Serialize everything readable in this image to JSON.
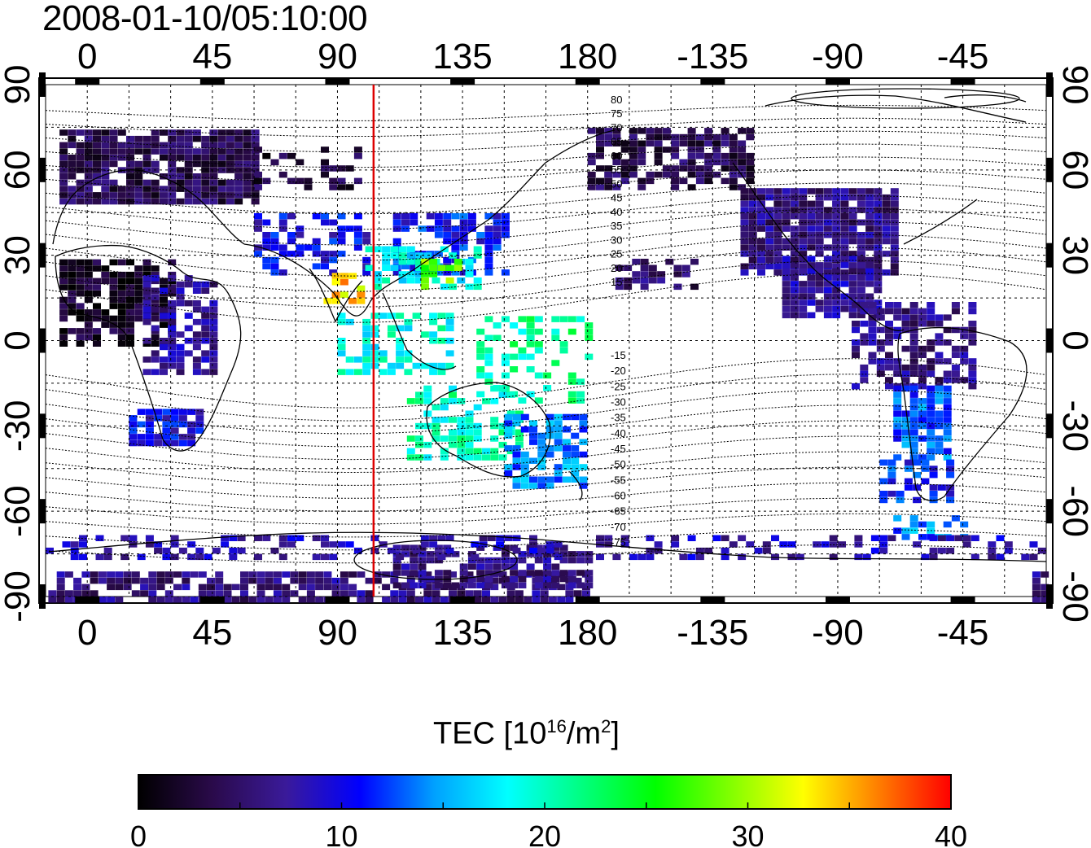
{
  "title": "2008-01-10/05:10:00",
  "map": {
    "top_lon_ticks": [
      "0",
      "45",
      "90",
      "135",
      "180",
      "-135",
      "-90",
      "-45"
    ],
    "bottom_lon_ticks": [
      "0",
      "45",
      "90",
      "135",
      "180",
      "-135",
      "-90",
      "-45"
    ],
    "left_lat_ticks": [
      "90",
      "60",
      "30",
      "0",
      "-30",
      "-60",
      "-90"
    ],
    "right_lat_ticks": [
      "90",
      "60",
      "30",
      "0",
      "-30",
      "-60",
      "-90"
    ],
    "magnetic_latitude_labels_north": [
      "80",
      "75",
      "70",
      "65",
      "60",
      "55",
      "50",
      "45",
      "40",
      "35",
      "30",
      "25",
      "20",
      "15"
    ],
    "magnetic_latitude_labels_south": [
      "-15",
      "-20",
      "-25",
      "-30",
      "-35",
      "-40",
      "-45",
      "-50",
      "-55",
      "-60",
      "-65",
      "-70",
      "-75"
    ],
    "meridian_marker_lon": 103,
    "meridian_marker_color": "#dd0000"
  },
  "colorbar": {
    "label_main": "TEC  [10",
    "label_exp1": "16",
    "label_mid": "/m",
    "label_exp2": "2",
    "label_end": "]",
    "ticks": [
      "0",
      "10",
      "20",
      "30",
      "40"
    ],
    "min": 0,
    "max": 40,
    "colors": [
      "#000000",
      "#2a0a4a",
      "#3a1a9a",
      "#0000ff",
      "#00a0ff",
      "#00ffff",
      "#00ff80",
      "#00ff00",
      "#80ff00",
      "#ffff00",
      "#ff8000",
      "#ff0000"
    ]
  }
}
